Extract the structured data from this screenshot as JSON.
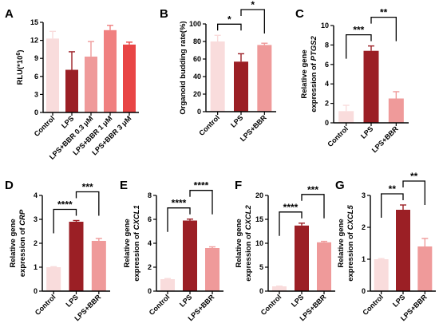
{
  "colors": {
    "control": "#f9dcdc",
    "lps": "#9b1f25",
    "lps_bbr": "#ef9a9a",
    "bbr_1": "#f08080",
    "bbr_3": "#e84545",
    "axis": "#000000"
  },
  "chart_data": [
    {
      "panel": "A",
      "type": "bar",
      "ylabel_parts": [
        "RLU(*10",
        "6",
        ")"
      ],
      "categories": [
        "Control",
        "LPS",
        "LPS+BBR 0.3 μM",
        "LPS+BBR 1 μM",
        "LPS+BBR 3 μM"
      ],
      "values": [
        12.3,
        7.1,
        9.3,
        13.7,
        11.3
      ],
      "errors": [
        1.2,
        3.0,
        2.5,
        0.8,
        0.4
      ],
      "ylim": [
        0,
        15
      ],
      "yticks": [
        "0",
        "3",
        "6",
        "9",
        "12",
        "15"
      ],
      "significance": []
    },
    {
      "panel": "B",
      "type": "bar",
      "ylabel_parts": [
        "Organoid budding rate(%)"
      ],
      "categories": [
        "Control",
        "LPS",
        "LPS+BBR"
      ],
      "values": [
        80,
        57,
        76
      ],
      "errors": [
        7,
        9,
        2
      ],
      "ylim": [
        0,
        100
      ],
      "yticks": [
        "0",
        "20",
        "40",
        "60",
        "80",
        "100"
      ],
      "significance": [
        {
          "from": 0,
          "to": 1,
          "label": "*"
        },
        {
          "from": 1,
          "to": 2,
          "label": "*"
        }
      ]
    },
    {
      "panel": "C",
      "type": "bar",
      "ylabel_parts": [
        "Relative gene",
        "expression of ",
        "PTGS2"
      ],
      "categories": [
        "Control",
        "LPS",
        "LPS+BBR"
      ],
      "values": [
        1.2,
        7.4,
        2.5
      ],
      "errors": [
        0.6,
        0.5,
        0.7
      ],
      "ylim": [
        0,
        10
      ],
      "yticks": [
        "0",
        "2",
        "4",
        "6",
        "8",
        "10"
      ],
      "significance": [
        {
          "from": 0,
          "to": 1,
          "label": "***"
        },
        {
          "from": 1,
          "to": 2,
          "label": "**"
        }
      ]
    },
    {
      "panel": "D",
      "type": "bar",
      "ylabel_parts": [
        "Relative gene",
        "expression of ",
        "CRP"
      ],
      "categories": [
        "Control",
        "LPS",
        "LPS+BBR"
      ],
      "values": [
        1.0,
        2.9,
        2.1
      ],
      "errors": [
        0.02,
        0.05,
        0.1
      ],
      "ylim": [
        0,
        4
      ],
      "yticks": [
        "0",
        "1",
        "2",
        "3",
        "4"
      ],
      "significance": [
        {
          "from": 0,
          "to": 1,
          "label": "****"
        },
        {
          "from": 1,
          "to": 2,
          "label": "***"
        }
      ]
    },
    {
      "panel": "E",
      "type": "bar",
      "ylabel_parts": [
        "Relative gene",
        "expression of ",
        "CXCL1"
      ],
      "categories": [
        "Control",
        "LPS",
        "LPS+BBR"
      ],
      "values": [
        1.0,
        5.9,
        3.6
      ],
      "errors": [
        0.05,
        0.12,
        0.1
      ],
      "ylim": [
        0,
        8
      ],
      "yticks": [
        "0",
        "2",
        "4",
        "6",
        "8"
      ],
      "significance": [
        {
          "from": 0,
          "to": 1,
          "label": "****"
        },
        {
          "from": 1,
          "to": 2,
          "label": "****"
        }
      ]
    },
    {
      "panel": "F",
      "type": "bar",
      "ylabel_parts": [
        "Relative gene",
        "expression of ",
        "CXCL2"
      ],
      "categories": [
        "Control",
        "LPS",
        "LPS+BBR"
      ],
      "values": [
        1.0,
        13.7,
        10.2
      ],
      "errors": [
        0.05,
        0.5,
        0.2
      ],
      "ylim": [
        0,
        20
      ],
      "yticks": [
        "0",
        "5",
        "10",
        "15",
        "20"
      ],
      "significance": [
        {
          "from": 0,
          "to": 1,
          "label": "****"
        },
        {
          "from": 1,
          "to": 2,
          "label": "***"
        }
      ]
    },
    {
      "panel": "G",
      "type": "bar",
      "ylabel_parts": [
        "Relative gene",
        "expression of ",
        "CXCL5"
      ],
      "categories": [
        "Control",
        "LPS",
        "LPS+BBR"
      ],
      "values": [
        1.0,
        2.55,
        1.4
      ],
      "errors": [
        0.02,
        0.15,
        0.25
      ],
      "ylim": [
        0,
        3
      ],
      "yticks": [
        "0",
        "1",
        "2",
        "3"
      ],
      "significance": [
        {
          "from": 0,
          "to": 1,
          "label": "**"
        },
        {
          "from": 1,
          "to": 2,
          "label": "**"
        }
      ]
    }
  ]
}
